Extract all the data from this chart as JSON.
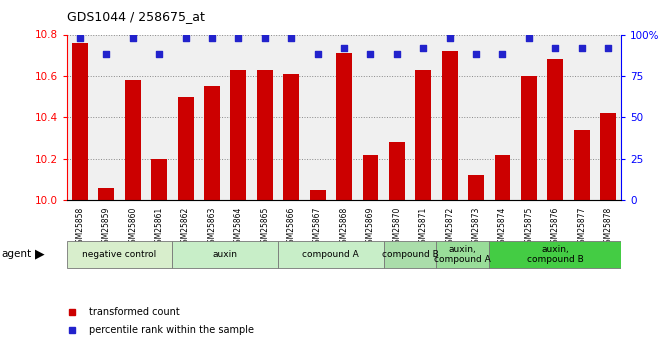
{
  "title": "GDS1044 / 258675_at",
  "samples": [
    "GSM25858",
    "GSM25859",
    "GSM25860",
    "GSM25861",
    "GSM25862",
    "GSM25863",
    "GSM25864",
    "GSM25865",
    "GSM25866",
    "GSM25867",
    "GSM25868",
    "GSM25869",
    "GSM25870",
    "GSM25871",
    "GSM25872",
    "GSM25873",
    "GSM25874",
    "GSM25875",
    "GSM25876",
    "GSM25877",
    "GSM25878"
  ],
  "bar_values": [
    10.76,
    10.06,
    10.58,
    10.2,
    10.5,
    10.55,
    10.63,
    10.63,
    10.61,
    10.05,
    10.71,
    10.22,
    10.28,
    10.63,
    10.72,
    10.12,
    10.22,
    10.6,
    10.68,
    10.34,
    10.42
  ],
  "percentile_values": [
    98,
    88,
    98,
    88,
    98,
    98,
    98,
    98,
    98,
    88,
    92,
    88,
    88,
    92,
    98,
    88,
    88,
    98,
    92,
    92,
    92
  ],
  "bar_color": "#cc0000",
  "dot_color": "#2222cc",
  "ylim_left": [
    10.0,
    10.8
  ],
  "ylim_right": [
    0,
    100
  ],
  "yticks_left": [
    10.0,
    10.2,
    10.4,
    10.6,
    10.8
  ],
  "yticks_right": [
    0,
    25,
    50,
    75,
    100
  ],
  "ytick_labels_right": [
    "0",
    "25",
    "50",
    "75",
    "100%"
  ],
  "groups": [
    {
      "label": "negative control",
      "start": 0,
      "end": 3,
      "color": "#d8eecc"
    },
    {
      "label": "auxin",
      "start": 4,
      "end": 7,
      "color": "#c8eec8"
    },
    {
      "label": "compound A",
      "start": 8,
      "end": 11,
      "color": "#c8eec8"
    },
    {
      "label": "compound B",
      "start": 12,
      "end": 13,
      "color": "#aaddaa"
    },
    {
      "label": "auxin,\ncompound A",
      "start": 14,
      "end": 15,
      "color": "#99dd99"
    },
    {
      "label": "auxin,\ncompound B",
      "start": 16,
      "end": 20,
      "color": "#44cc44"
    }
  ],
  "legend_bar_label": "transformed count",
  "legend_dot_label": "percentile rank within the sample",
  "grid_color": "#888888",
  "plot_bg_color": "#f0f0f0"
}
